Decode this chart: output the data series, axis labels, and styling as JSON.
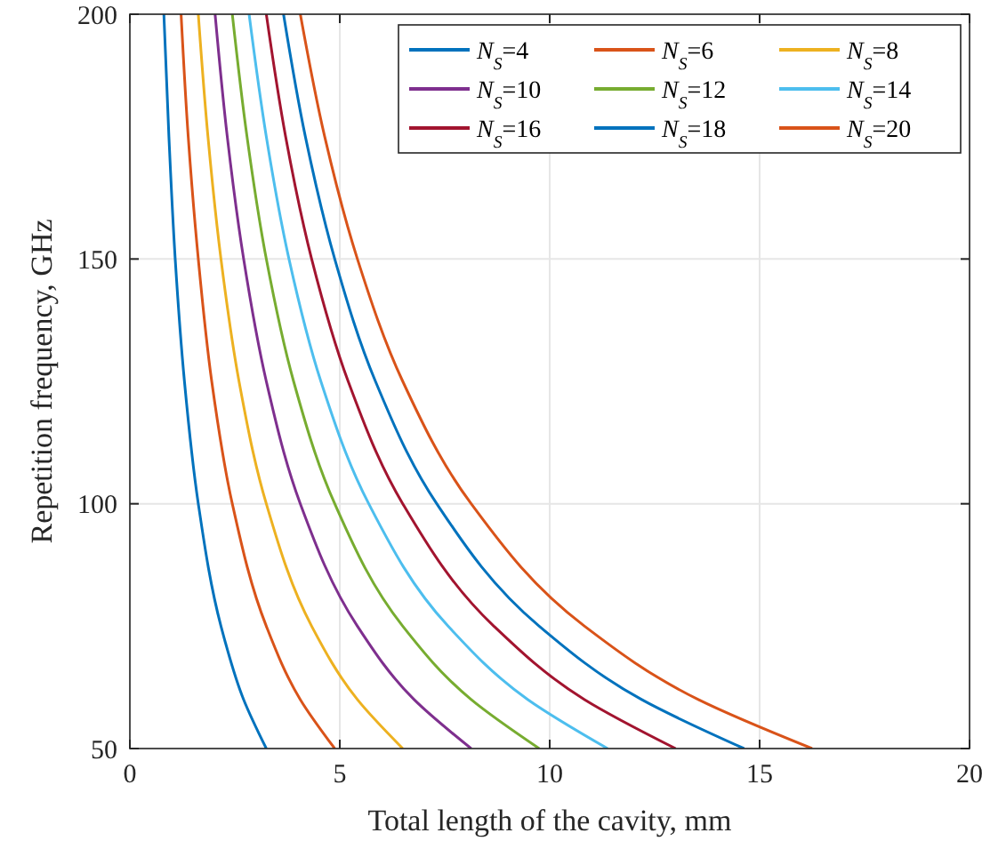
{
  "chart_data": {
    "type": "line",
    "xlabel": "Total length of the cavity, mm",
    "ylabel": "Repetition frequency, GHz",
    "xlim": [
      0,
      20
    ],
    "ylim": [
      50,
      200
    ],
    "xticks": [
      0,
      5,
      10,
      15,
      20
    ],
    "yticks": [
      50,
      100,
      150,
      200
    ],
    "grid": true,
    "legend": "top right",
    "line_style": "solid",
    "marker": "none",
    "series": [
      {
        "name": "N$_{S}$=4",
        "color": "#0072bd",
        "x": [
          3.25,
          2.71,
          2.17,
          1.63,
          1.3,
          1.08,
          0.93,
          0.81
        ],
        "values": [
          50,
          60,
          75,
          100,
          125,
          150,
          175,
          200
        ]
      },
      {
        "name": "N$_{S}$=6",
        "color": "#d95319",
        "x": [
          4.88,
          4.06,
          3.25,
          2.44,
          1.95,
          1.63,
          1.39,
          1.22
        ],
        "values": [
          50,
          60,
          75,
          100,
          125,
          150,
          175,
          200
        ]
      },
      {
        "name": "N$_{S}$=8",
        "color": "#edb120",
        "x": [
          6.5,
          5.42,
          4.33,
          3.25,
          2.6,
          2.17,
          1.86,
          1.63
        ],
        "values": [
          50,
          60,
          75,
          100,
          125,
          150,
          175,
          200
        ]
      },
      {
        "name": "N$_{S}$=10",
        "color": "#7e2f8e",
        "x": [
          8.13,
          6.77,
          5.42,
          4.06,
          3.25,
          2.71,
          2.32,
          2.03
        ],
        "values": [
          50,
          60,
          75,
          100,
          125,
          150,
          175,
          200
        ]
      },
      {
        "name": "N$_{S}$=12",
        "color": "#77ac30",
        "x": [
          9.75,
          8.13,
          6.5,
          4.88,
          3.9,
          3.25,
          2.79,
          2.44
        ],
        "values": [
          50,
          60,
          75,
          100,
          125,
          150,
          175,
          200
        ]
      },
      {
        "name": "N$_{S}$=14",
        "color": "#4dbeee",
        "x": [
          11.38,
          9.48,
          7.58,
          5.69,
          4.55,
          3.79,
          3.25,
          2.84
        ],
        "values": [
          50,
          60,
          75,
          100,
          125,
          150,
          175,
          200
        ]
      },
      {
        "name": "N$_{S}$=16",
        "color": "#a2142f",
        "x": [
          13,
          10.83,
          8.67,
          6.5,
          5.2,
          4.33,
          3.71,
          3.25
        ],
        "values": [
          50,
          60,
          75,
          100,
          125,
          150,
          175,
          200
        ]
      },
      {
        "name": "N$_{S}$=18",
        "color": "#0072bd",
        "x": [
          14.63,
          12.19,
          9.75,
          7.31,
          5.85,
          4.88,
          4.18,
          3.66
        ],
        "values": [
          50,
          60,
          75,
          100,
          125,
          150,
          175,
          200
        ]
      },
      {
        "name": "N$_{S}$=20",
        "color": "#d95319",
        "x": [
          16.25,
          13.54,
          10.83,
          8.13,
          6.5,
          5.42,
          4.64,
          4.06
        ],
        "values": [
          50,
          60,
          75,
          100,
          125,
          150,
          175,
          200
        ]
      }
    ]
  }
}
